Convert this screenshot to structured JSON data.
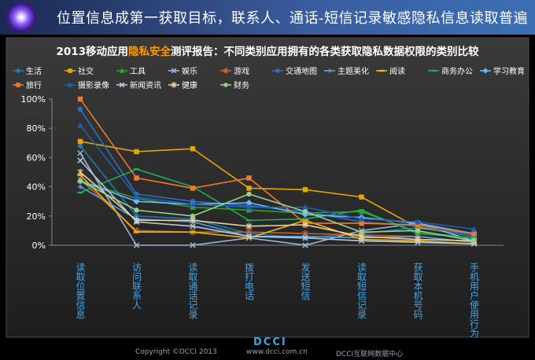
{
  "header": {
    "title": "位置信息成第一获取目标，联系人、通话-短信记录敏感隐私信息读取普遍"
  },
  "chart_data": {
    "type": "line",
    "title_parts": [
      {
        "text": "2013移动应用",
        "highlight": false
      },
      {
        "text": "隐私安全",
        "highlight": true
      },
      {
        "text": "测评报告：不同类别应用拥有的各类获取隐私数据权限的类别比较",
        "highlight": false
      }
    ],
    "categories": [
      "读取位置信息",
      "访问联系人",
      "读取通话记录",
      "拨打电话",
      "发送短信",
      "读取短信记录",
      "获取本机号码",
      "手机用户使用行为"
    ],
    "y_ticks": [
      "0%",
      "20%",
      "40%",
      "60%",
      "80%",
      "100%"
    ],
    "ylim": [
      0,
      100
    ],
    "grid": false,
    "legend_position": "top",
    "series": [
      {
        "name": "生活",
        "color": "#1f77b4",
        "marker": "diamond",
        "values": [
          68,
          20,
          18,
          8,
          5,
          8,
          12,
          6
        ]
      },
      {
        "name": "社交",
        "color": "#e0a800",
        "marker": "square",
        "values": [
          71,
          64,
          66,
          39,
          38,
          33,
          12,
          8
        ]
      },
      {
        "name": "工具",
        "color": "#2ca02c",
        "marker": "triangle",
        "values": [
          44,
          32,
          26,
          24,
          22,
          23,
          9,
          5
        ]
      },
      {
        "name": "娱乐",
        "color": "#9ab3d6",
        "marker": "x",
        "values": [
          63,
          0,
          0,
          5,
          0,
          10,
          15,
          3
        ]
      },
      {
        "name": "游戏",
        "color": "#c86428",
        "marker": "star",
        "values": [
          45,
          10,
          9,
          9,
          8,
          7,
          6,
          2
        ]
      },
      {
        "name": "交通地图",
        "color": "#2e6fc0",
        "marker": "circle",
        "values": [
          93,
          35,
          30,
          27,
          23,
          16,
          13,
          7
        ]
      },
      {
        "name": "主题美化",
        "color": "#5aa0e0",
        "marker": "plus",
        "values": [
          40,
          18,
          16,
          6,
          6,
          5,
          6,
          2
        ]
      },
      {
        "name": "阅读",
        "color": "#f2b705",
        "marker": "dash",
        "values": [
          48,
          9,
          9,
          5,
          17,
          4,
          3,
          1
        ]
      },
      {
        "name": "商务办公",
        "color": "#22aa55",
        "marker": "dash",
        "values": [
          36,
          52,
          40,
          17,
          18,
          24,
          8,
          5
        ]
      },
      {
        "name": "学习教育",
        "color": "#66b8ff",
        "marker": "diamond",
        "values": [
          44,
          30,
          28,
          29,
          21,
          19,
          15,
          8
        ]
      },
      {
        "name": "旅行",
        "color": "#f07a2a",
        "marker": "square",
        "values": [
          100,
          46,
          39,
          46,
          15,
          15,
          14,
          8
        ]
      },
      {
        "name": "摄影录像",
        "color": "#1f5fb4",
        "marker": "triangle",
        "values": [
          82,
          33,
          28,
          26,
          26,
          18,
          16,
          11
        ]
      },
      {
        "name": "新闻资讯",
        "color": "#b8c8e0",
        "marker": "x",
        "values": [
          58,
          16,
          13,
          6,
          5,
          3,
          2,
          1
        ]
      },
      {
        "name": "健康",
        "color": "#e8d0a0",
        "marker": "star",
        "values": [
          50,
          17,
          17,
          13,
          14,
          6,
          4,
          3
        ]
      },
      {
        "name": "财务",
        "color": "#98d08a",
        "marker": "circle",
        "values": [
          44,
          24,
          20,
          35,
          23,
          9,
          10,
          3
        ]
      }
    ]
  },
  "footer": {
    "copyright": "Copyright ©DCCI 2013",
    "brand": "DCCI",
    "url": "www.dcci.com.cn",
    "center": "DCCI互联网数据中心"
  }
}
